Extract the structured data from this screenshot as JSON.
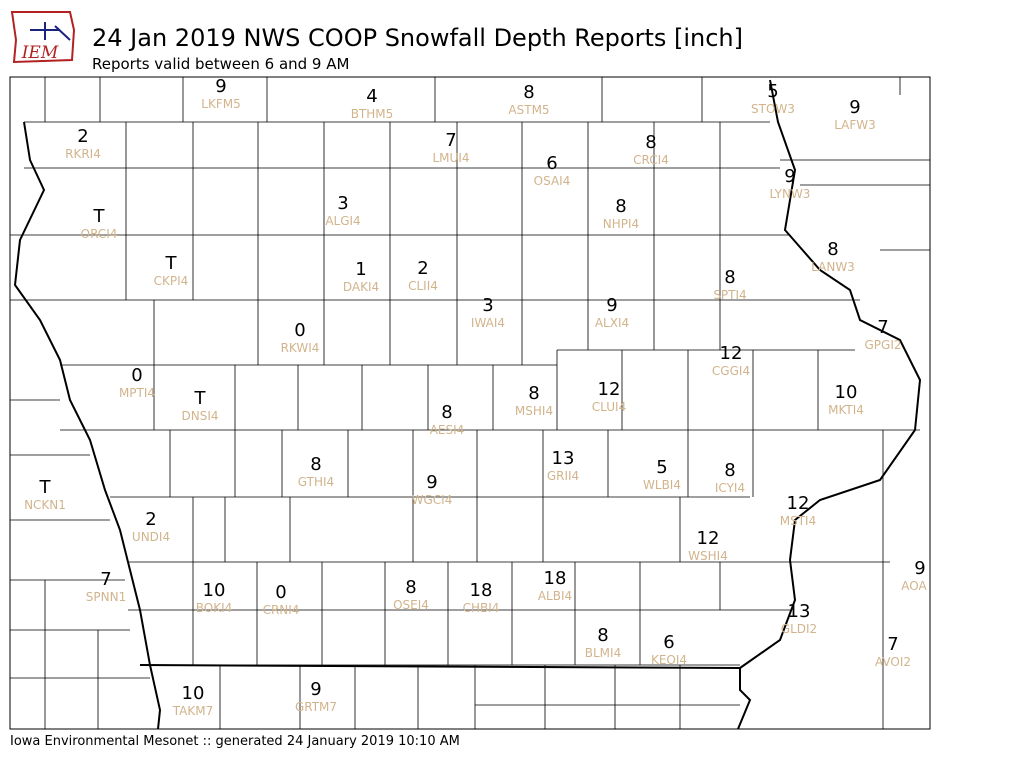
{
  "header": {
    "logo": "IEM",
    "title": "24 Jan 2019 NWS COOP Snowfall Depth Reports [inch]",
    "subtitle": "Reports valid between 6 and 9 AM"
  },
  "stations": [
    {
      "value": 9,
      "label": "LKFM5"
    },
    {
      "value": 4,
      "label": "BTHM5"
    },
    {
      "value": 8,
      "label": "ASTM5"
    },
    {
      "value": 5,
      "label": "STOW3"
    },
    {
      "value": 9,
      "label": "LAFW3"
    },
    {
      "value": 2,
      "label": "RKRI4"
    },
    {
      "value": 7,
      "label": "LMUI4"
    },
    {
      "value": 6,
      "label": "OSAI4"
    },
    {
      "value": 8,
      "label": "CRCI4"
    },
    {
      "value": 9,
      "label": "LYNW3"
    },
    {
      "value": "T",
      "label": "ORCI4"
    },
    {
      "value": 3,
      "label": "ALGI4"
    },
    {
      "value": 8,
      "label": "NHPI4"
    },
    {
      "value": "T",
      "label": "CKPI4"
    },
    {
      "value": 1,
      "label": "DAKI4"
    },
    {
      "value": 2,
      "label": "CLII4"
    },
    {
      "value": 8,
      "label": "LANW3"
    },
    {
      "value": 8,
      "label": "SPTI4"
    },
    {
      "value": 3,
      "label": "IWAI4"
    },
    {
      "value": 9,
      "label": "ALXI4"
    },
    {
      "value": 0,
      "label": "RKWI4"
    },
    {
      "value": 7,
      "label": "GPGI2"
    },
    {
      "value": 12,
      "label": "CGGI4"
    },
    {
      "value": 0,
      "label": "MPTI4"
    },
    {
      "value": "T",
      "label": "DNSI4"
    },
    {
      "value": 12,
      "label": "CLUI4"
    },
    {
      "value": 8,
      "label": "MSHI4"
    },
    {
      "value": 10,
      "label": "MKTI4"
    },
    {
      "value": 8,
      "label": "AESI4"
    },
    {
      "value": 13,
      "label": "GRII4"
    },
    {
      "value": 5,
      "label": "WLBI4"
    },
    {
      "value": 8,
      "label": "ICYI4"
    },
    {
      "value": 8,
      "label": "GTHI4"
    },
    {
      "value": 9,
      "label": "WGCI4"
    },
    {
      "value": "T",
      "label": "NCKN1"
    },
    {
      "value": 12,
      "label": "MSTI4"
    },
    {
      "value": 2,
      "label": "UNDI4"
    },
    {
      "value": 12,
      "label": "WSHI4"
    },
    {
      "value": 9,
      "label": "AOA"
    },
    {
      "value": 7,
      "label": "SPNN1"
    },
    {
      "value": 10,
      "label": "BOKI4"
    },
    {
      "value": 0,
      "label": "CRNI4"
    },
    {
      "value": 8,
      "label": "OSEI4"
    },
    {
      "value": 18,
      "label": "CHBI4"
    },
    {
      "value": 18,
      "label": "ALBI4"
    },
    {
      "value": 13,
      "label": "GLDI2"
    },
    {
      "value": 8,
      "label": "BLMI4"
    },
    {
      "value": 6,
      "label": "KEOI4"
    },
    {
      "value": 7,
      "label": "AVOI2"
    },
    {
      "value": 10,
      "label": "TAKM7"
    },
    {
      "value": 9,
      "label": "GRTM7"
    }
  ],
  "footer": "Iowa Environmental Mesonet :: generated 24 January 2019 10:10 AM"
}
